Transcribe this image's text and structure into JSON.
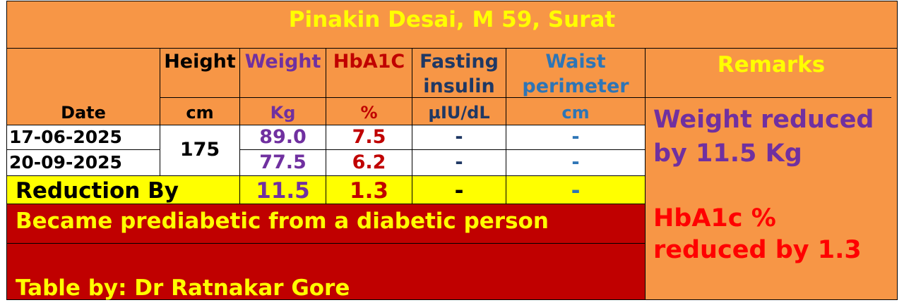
{
  "title": "Pinakin Desai, M 59, Surat",
  "headers": {
    "date": "Date",
    "height": "Height",
    "height_unit": "cm",
    "weight": "Weight",
    "weight_unit": "Kg",
    "hba1c": "HbA1C",
    "hba1c_unit": "%",
    "fasting_line1": "Fasting",
    "fasting_line2": "insulin",
    "fasting_unit": "µIU/dL",
    "waist_line1": "Waist",
    "waist_line2": "perimeter",
    "waist_unit": "cm",
    "remarks": "Remarks"
  },
  "rows": [
    {
      "date": "17-06-2025",
      "weight": "89.0",
      "hba1c": "7.5",
      "fasting": "-",
      "waist": "-"
    },
    {
      "date": "20-09-2025",
      "weight": "77.5",
      "hba1c": "6.2",
      "fasting": "-",
      "waist": "-"
    }
  ],
  "height_value": "175",
  "reduction": {
    "label": "Reduction By",
    "weight": "11.5",
    "hba1c": "1.3",
    "fasting": "-",
    "waist": "-"
  },
  "note": "Became prediabetic from a diabetic person",
  "credit": "Table by: Dr Ratnakar Gore",
  "remarks": {
    "weight_line1": "Weight reduced",
    "weight_line2": "by 11.5 Kg",
    "hba1c_line1": "HbA1c %",
    "hba1c_line2": "reduced by 1.3"
  },
  "colors": {
    "orange": "#F79646",
    "yellow": "#FFFF00",
    "dark_red": "#C00000",
    "purple": "#7030A0",
    "navy": "#1F3864",
    "blue": "#2E75B6",
    "bright_red": "#FF0000"
  }
}
